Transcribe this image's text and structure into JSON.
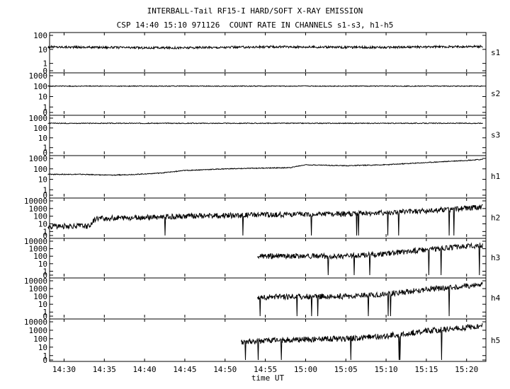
{
  "title_lines": [
    "INTERBALL-Tail RF15-I HARD/SOFT X-RAY EMISSION",
    "CSP 14:40 15:10 971126  COUNT RATE IN CHANNELS s1-s3, h1-h5"
  ],
  "chart_data": {
    "type": "line",
    "title": "INTERBALL-Tail RF15-I HARD/SOFT X-RAY EMISSION",
    "subtitle": "CSP 14:40 15:10 971126  COUNT RATE IN CHANNELS s1-s3, h1-h5",
    "xlabel": "time UT",
    "x_ticks": [
      "14:30",
      "14:35",
      "14:40",
      "14:45",
      "14:50",
      "14:55",
      "15:00",
      "15:05",
      "15:10",
      "15:15",
      "15:20"
    ],
    "x_tick_minutes": [
      870,
      875,
      880,
      885,
      890,
      895,
      900,
      905,
      910,
      915,
      920
    ],
    "x_range_minutes": [
      868.2,
      922.4
    ],
    "y_scale": "log",
    "series": [
      {
        "name": "s1",
        "y_ticks": [
          "100",
          "10",
          "1",
          "0"
        ],
        "ylim": [
          0.3,
          100
        ],
        "x": [
          "14:28",
          "14:35",
          "14:40",
          "14:45",
          "14:50",
          "14:55",
          "15:00",
          "15:05",
          "15:10",
          "15:15",
          "15:22"
        ],
        "values": [
          15,
          14,
          13,
          13,
          14,
          15,
          15,
          14,
          14,
          15,
          16
        ]
      },
      {
        "name": "s2",
        "y_ticks": [
          "1000",
          "100",
          "10",
          "1",
          "0"
        ],
        "ylim": [
          0.3,
          1000
        ],
        "x": [
          "14:28",
          "14:35",
          "14:40",
          "14:45",
          "14:50",
          "14:55",
          "15:00",
          "15:05",
          "15:10",
          "15:15",
          "15:22"
        ],
        "values": [
          100,
          100,
          100,
          100,
          100,
          100,
          100,
          100,
          100,
          100,
          100
        ]
      },
      {
        "name": "s3",
        "y_ticks": [
          "1000",
          "100",
          "10",
          "1",
          "0"
        ],
        "ylim": [
          0.3,
          1000
        ],
        "x": [
          "14:28",
          "14:35",
          "14:40",
          "14:45",
          "14:50",
          "14:55",
          "15:00",
          "15:05",
          "15:10",
          "15:15",
          "15:22"
        ],
        "values": [
          300,
          300,
          300,
          300,
          300,
          300,
          300,
          300,
          300,
          300,
          300
        ]
      },
      {
        "name": "h1",
        "y_ticks": [
          "1000",
          "100",
          "10",
          "1",
          "0"
        ],
        "ylim": [
          0.3,
          1000
        ],
        "x": [
          "14:28",
          "14:32",
          "14:36",
          "14:39",
          "14:42",
          "14:45",
          "14:50",
          "14:55",
          "14:58",
          "15:00",
          "15:05",
          "15:10",
          "15:15",
          "15:22"
        ],
        "values": [
          30,
          30,
          25,
          30,
          40,
          70,
          100,
          120,
          130,
          250,
          200,
          250,
          400,
          800
        ]
      },
      {
        "name": "h2",
        "y_ticks": [
          "10000",
          "1000",
          "100",
          "10",
          "1",
          "0"
        ],
        "ylim": [
          0.3,
          10000
        ],
        "x": [
          "14:28",
          "14:33",
          "14:34",
          "14:38",
          "14:40",
          "14:45",
          "14:50",
          "14:55",
          "15:00",
          "15:05",
          "15:10",
          "15:15",
          "15:22"
        ],
        "values": [
          5,
          5,
          50,
          60,
          70,
          100,
          120,
          150,
          180,
          200,
          300,
          500,
          1500
        ]
      },
      {
        "name": "h3",
        "y_ticks": [
          "10000",
          "1000",
          "100",
          "10",
          "1",
          "0"
        ],
        "ylim": [
          0.3,
          10000
        ],
        "x": [
          "14:54",
          "14:55",
          "15:00",
          "15:05",
          "15:10",
          "15:15",
          "15:22"
        ],
        "values": [
          100,
          100,
          100,
          100,
          200,
          800,
          3000
        ]
      },
      {
        "name": "h4",
        "y_ticks": [
          "10000",
          "1000",
          "100",
          "10",
          "1",
          "0"
        ],
        "ylim": [
          0.3,
          10000
        ],
        "x": [
          "14:54",
          "14:55",
          "15:00",
          "15:05",
          "15:10",
          "15:15",
          "15:22"
        ],
        "values": [
          60,
          80,
          100,
          100,
          200,
          800,
          3000
        ]
      },
      {
        "name": "h5",
        "y_ticks": [
          "10000",
          "1000",
          "100",
          "10",
          "1",
          "0"
        ],
        "ylim": [
          0.3,
          10000
        ],
        "x": [
          "14:52",
          "14:55",
          "15:00",
          "15:05",
          "15:10",
          "15:15",
          "15:22"
        ],
        "values": [
          40,
          60,
          80,
          100,
          200,
          800,
          3000
        ]
      }
    ]
  }
}
